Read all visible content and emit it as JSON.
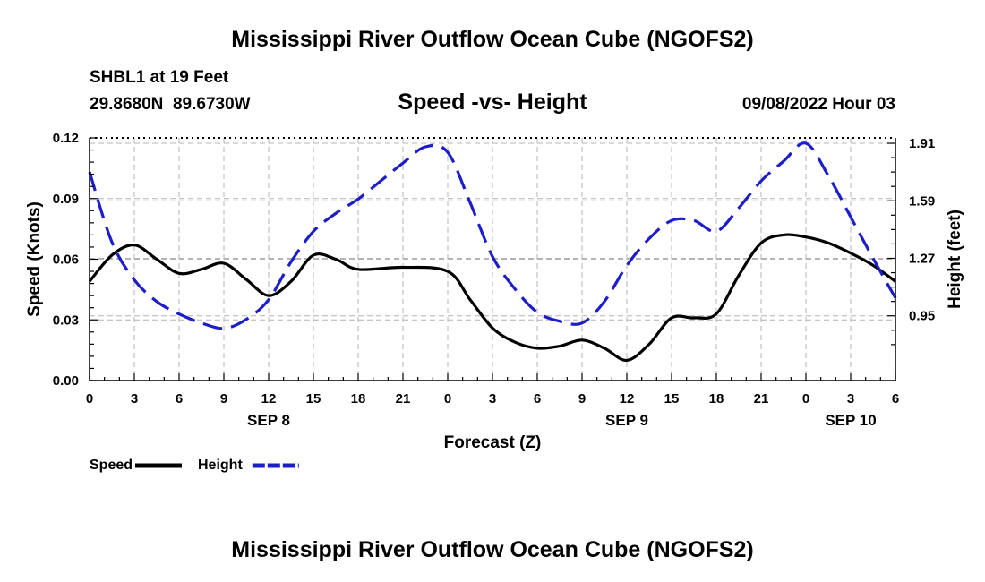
{
  "header": {
    "title": "Mississippi River Outflow Ocean Cube (NGOFS2)",
    "station": "SHBL1 at 19 Feet",
    "coords": "29.8680N  89.6730W",
    "subtitle": "Speed -vs- Height",
    "date": "09/08/2022 Hour 03"
  },
  "footer": {
    "title": "Mississippi River Outflow Ocean Cube (NGOFS2)"
  },
  "chart_data": {
    "type": "line",
    "title": "Speed -vs- Height",
    "xlabel": "Forecast (Z)",
    "ylabel": "Speed (Knots)",
    "y2label": "Height (feet)",
    "xlim": [
      0,
      54
    ],
    "ylim": [
      0,
      0.12
    ],
    "y2lim": [
      0.59,
      1.94
    ],
    "grid": true,
    "x_ticks": [
      0,
      3,
      6,
      9,
      12,
      15,
      18,
      21,
      24,
      27,
      30,
      33,
      36,
      39,
      42,
      45,
      48,
      51,
      54
    ],
    "x_tick_labels": [
      "0",
      "3",
      "6",
      "9",
      "12",
      "15",
      "18",
      "21",
      "0",
      "3",
      "6",
      "9",
      "12",
      "15",
      "18",
      "21",
      "0",
      "3",
      "6"
    ],
    "day_labels": [
      {
        "x": 12,
        "label": "SEP 8"
      },
      {
        "x": 36,
        "label": "SEP 9"
      },
      {
        "x": 51,
        "label": "SEP 10"
      }
    ],
    "y_ticks": [
      0,
      0.03,
      0.06,
      0.09,
      0.12
    ],
    "y_tick_labels": [
      "0.00",
      "0.03",
      "0.06",
      "0.09",
      "0.12"
    ],
    "y2_ticks": [
      0.95,
      1.27,
      1.59,
      1.91
    ],
    "y2_tick_labels": [
      "0.95",
      "1.27",
      "1.59",
      "1.91"
    ],
    "series": [
      {
        "name": "Speed",
        "axis": "left",
        "color": "#000000",
        "dash": "solid",
        "x": [
          0,
          1.5,
          3,
          4.5,
          6,
          7.5,
          9,
          10.5,
          12,
          13.5,
          15,
          16.5,
          18,
          21,
          24,
          25.5,
          27,
          28.5,
          30,
          31.5,
          33,
          34.5,
          36,
          37.5,
          39,
          40.5,
          42,
          43.5,
          45,
          46.5,
          48,
          49.5,
          51,
          52.5,
          54
        ],
        "values": [
          0.049,
          0.062,
          0.067,
          0.06,
          0.053,
          0.055,
          0.058,
          0.05,
          0.042,
          0.049,
          0.062,
          0.06,
          0.055,
          0.056,
          0.054,
          0.04,
          0.026,
          0.019,
          0.016,
          0.017,
          0.02,
          0.016,
          0.01,
          0.018,
          0.031,
          0.031,
          0.033,
          0.052,
          0.068,
          0.072,
          0.071,
          0.068,
          0.063,
          0.057,
          0.049
        ]
      },
      {
        "name": "Height",
        "axis": "right",
        "color": "#1e1ec8",
        "dash": "dashed",
        "x": [
          0,
          1.5,
          3,
          4.5,
          6,
          7.5,
          9,
          10.5,
          12,
          13.5,
          15,
          16.5,
          18,
          19.5,
          21,
          22.5,
          24,
          25.5,
          27,
          28.5,
          30,
          31.5,
          33,
          34.5,
          36,
          37.5,
          39,
          40.5,
          42,
          43.5,
          45,
          46.5,
          48,
          49.5,
          51,
          52.5,
          54
        ],
        "values": [
          1.75,
          1.36,
          1.15,
          1.03,
          0.96,
          0.91,
          0.88,
          0.93,
          1.04,
          1.25,
          1.42,
          1.52,
          1.6,
          1.7,
          1.8,
          1.89,
          1.86,
          1.58,
          1.28,
          1.1,
          0.97,
          0.92,
          0.91,
          1.03,
          1.23,
          1.38,
          1.48,
          1.48,
          1.42,
          1.55,
          1.7,
          1.81,
          1.91,
          1.73,
          1.5,
          1.27,
          1.05
        ]
      }
    ],
    "legend": [
      {
        "label": "Speed",
        "color": "#000000",
        "dash": "solid"
      },
      {
        "label": "Height",
        "color": "#1e1ec8",
        "dash": "dashed"
      }
    ],
    "legend_position": "bottom-left"
  }
}
